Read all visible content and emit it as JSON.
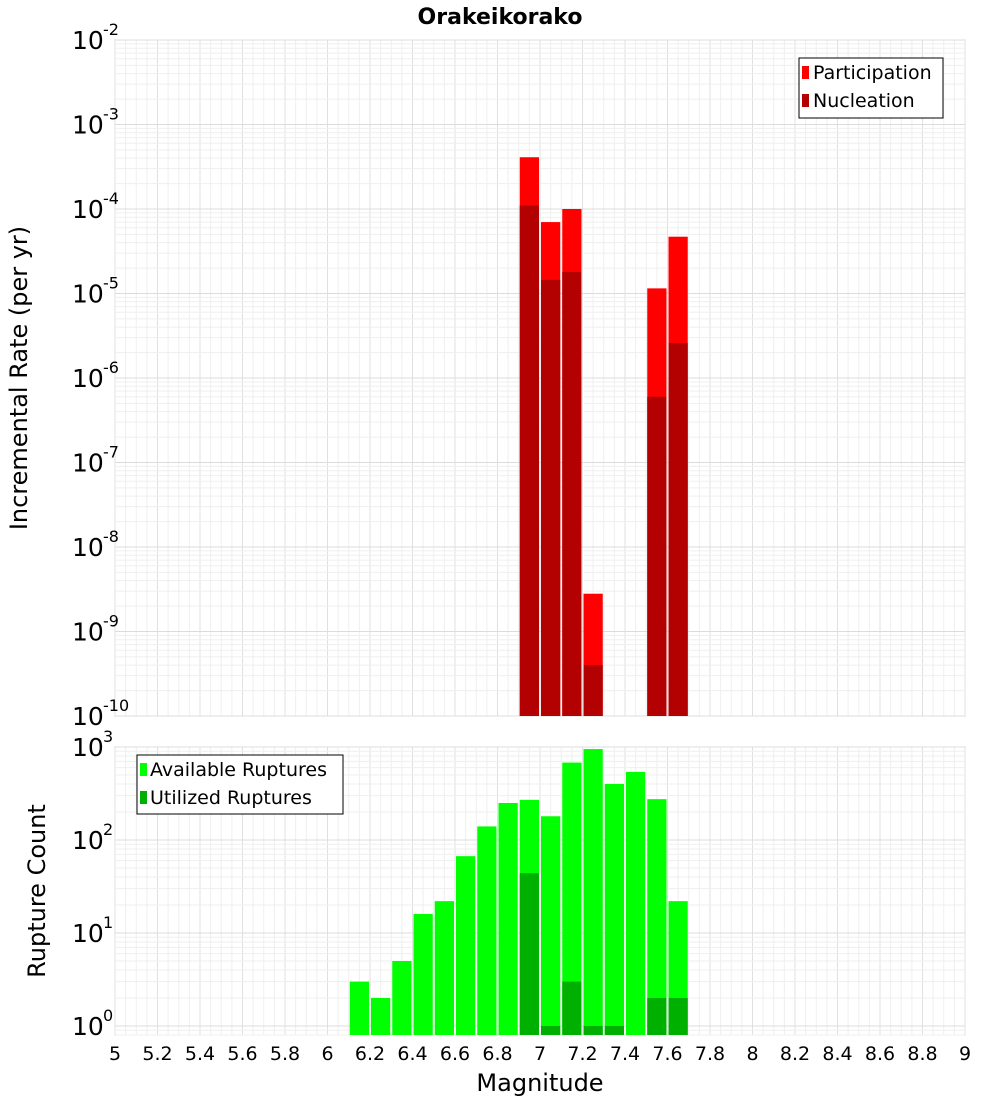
{
  "title": "Orakeikorako",
  "chart_data": [
    {
      "type": "bar",
      "title": "Orakeikorako",
      "xlabel": "Magnitude",
      "ylabel": "Incremental Rate (per yr)",
      "y_scale": "log",
      "xlim": [
        5,
        9
      ],
      "ylim": [
        1e-10,
        0.01
      ],
      "grid": true,
      "legend_position": "top-right",
      "y_ticks": [
        {
          "base": "10",
          "exp": "-10",
          "value": 1e-10
        },
        {
          "base": "10",
          "exp": "-9",
          "value": 1e-09
        },
        {
          "base": "10",
          "exp": "-8",
          "value": 1e-08
        },
        {
          "base": "10",
          "exp": "-7",
          "value": 1e-07
        },
        {
          "base": "10",
          "exp": "-6",
          "value": 1e-06
        },
        {
          "base": "10",
          "exp": "-5",
          "value": 1e-05
        },
        {
          "base": "10",
          "exp": "-4",
          "value": 0.0001
        },
        {
          "base": "10",
          "exp": "-3",
          "value": 0.001
        },
        {
          "base": "10",
          "exp": "-2",
          "value": 0.01
        }
      ],
      "series": [
        {
          "name": "Participation",
          "color": "#ff0000",
          "x": [
            6.95,
            7.05,
            7.15,
            7.25,
            7.55,
            7.65
          ],
          "values": [
            0.00041,
            7e-05,
            0.0001,
            2.8e-09,
            1.15e-05,
            4.7e-05
          ]
        },
        {
          "name": "Nucleation",
          "color": "#b30000",
          "x": [
            6.95,
            7.05,
            7.15,
            7.25,
            7.55,
            7.65
          ],
          "values": [
            0.00011,
            1.45e-05,
            1.8e-05,
            4e-10,
            6e-07,
            2.6e-06
          ]
        }
      ]
    },
    {
      "type": "bar",
      "xlabel": "Magnitude",
      "ylabel": "Rupture Count",
      "y_scale": "log",
      "xlim": [
        5,
        9
      ],
      "ylim": [
        0.8,
        1000
      ],
      "grid": true,
      "legend_position": "top-left",
      "x_ticks": [
        "5",
        "5.2",
        "5.4",
        "5.6",
        "5.8",
        "6",
        "6.2",
        "6.4",
        "6.6",
        "6.8",
        "7",
        "7.2",
        "7.4",
        "7.6",
        "7.8",
        "8",
        "8.2",
        "8.4",
        "8.6",
        "8.8",
        "9"
      ],
      "y_ticks": [
        {
          "base": "10",
          "exp": "0",
          "value": 1
        },
        {
          "base": "10",
          "exp": "1",
          "value": 10
        },
        {
          "base": "10",
          "exp": "2",
          "value": 100
        },
        {
          "base": "10",
          "exp": "3",
          "value": 1000
        }
      ],
      "series": [
        {
          "name": "Available Ruptures",
          "color": "#00ff00",
          "x": [
            6.15,
            6.25,
            6.35,
            6.45,
            6.55,
            6.65,
            6.75,
            6.85,
            6.95,
            7.05,
            7.15,
            7.25,
            7.35,
            7.45,
            7.55,
            7.65
          ],
          "values": [
            3,
            2,
            5,
            16,
            22,
            67,
            140,
            250,
            270,
            180,
            680,
            950,
            400,
            540,
            275,
            22
          ]
        },
        {
          "name": "Utilized Ruptures",
          "color": "#00b000",
          "x": [
            6.95,
            7.05,
            7.15,
            7.25,
            7.35,
            7.55,
            7.65
          ],
          "values": [
            44,
            1,
            3,
            1,
            1,
            2,
            2
          ]
        }
      ]
    }
  ]
}
